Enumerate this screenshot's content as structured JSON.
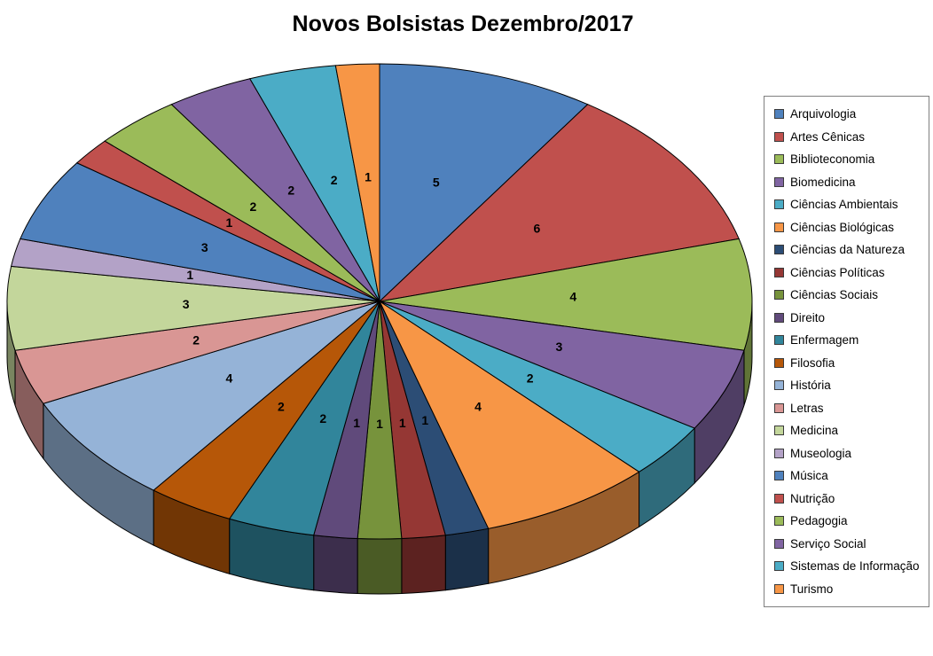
{
  "title": "Novos Bolsistas Dezembro/2017",
  "chart_data": {
    "type": "pie",
    "style": "3d",
    "title": "Novos Bolsistas Dezembro/2017",
    "legend_position": "right",
    "data_labels": "value",
    "categories": [
      "Arquivologia",
      "Artes Cênicas",
      "Biblioteconomia",
      "Biomedicina",
      "Ciências Ambientais",
      "Ciências Biológicas",
      "Ciências da Natureza",
      "Ciências Políticas",
      "Ciências Sociais",
      "Direito",
      "Enfermagem",
      "Filosofia",
      "História",
      "Letras",
      "Medicina",
      "Museologia",
      "Música",
      "Nutrição",
      "Pedagogia",
      "Serviço Social",
      "Sistemas de Informação",
      "Turismo"
    ],
    "values": [
      5,
      6,
      4,
      3,
      2,
      4,
      1,
      1,
      1,
      1,
      2,
      2,
      4,
      2,
      3,
      1,
      3,
      1,
      2,
      2,
      2,
      1
    ],
    "colors": [
      "#4F81BD",
      "#C0504D",
      "#9BBB59",
      "#8064A2",
      "#4BACC6",
      "#F79646",
      "#2C4D75",
      "#953734",
      "#77933C",
      "#604A7B",
      "#31859B",
      "#B65708",
      "#95B3D7",
      "#D99694",
      "#C3D69B",
      "#B3A2C7",
      "#4F81BD",
      "#C0504D",
      "#9BBB59",
      "#8064A2",
      "#4BACC6",
      "#F79646"
    ]
  }
}
